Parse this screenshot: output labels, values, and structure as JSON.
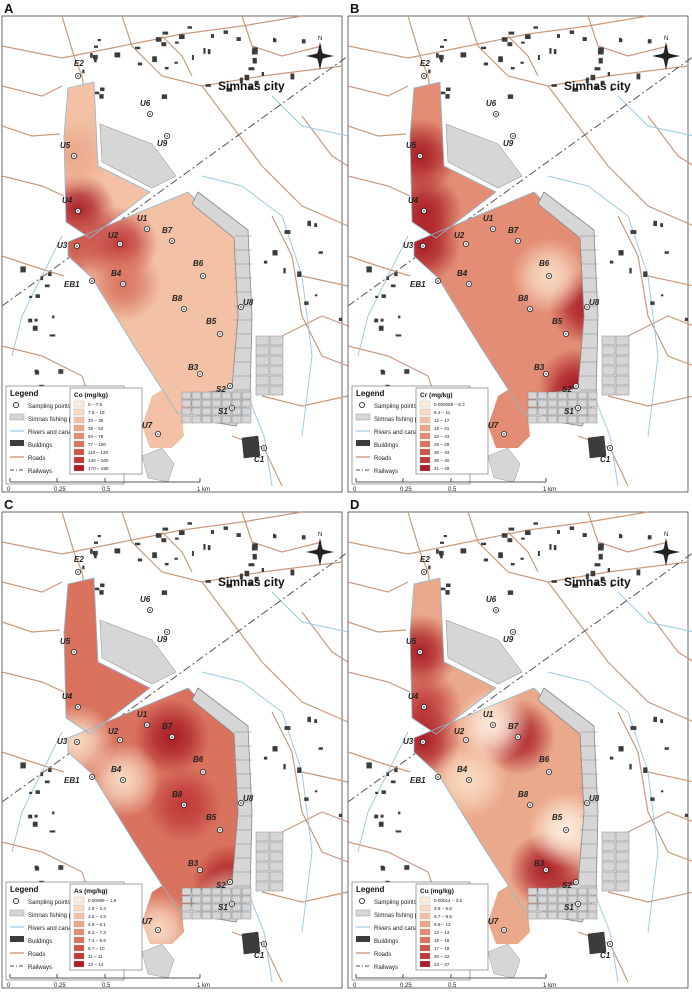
{
  "city_label": "Simnas city",
  "north": "N",
  "scale_labels": [
    "0",
    "0.25",
    "0.5",
    "1 km"
  ],
  "point_labels": {
    "E2": "E2",
    "U6": "U6",
    "U9": "U9",
    "U5": "U5",
    "U4": "U4",
    "U3": "U3",
    "U2": "U2",
    "U1": "U1",
    "B7": "B7",
    "B6": "B6",
    "EB1": "EB1",
    "B4": "B4",
    "B8": "B8",
    "U8": "U8",
    "B5": "B5",
    "B3": "B3",
    "S2": "S2",
    "S1": "S1",
    "U7": "U7",
    "C1": "C1"
  },
  "legend": {
    "title": "Legend",
    "items": [
      "Sampling points",
      "Simnas fishing ponds",
      "Rivers and canals",
      "Buildings",
      "Roads",
      "Railways"
    ]
  },
  "panels": [
    {
      "letter": "A",
      "scale_title": "Co (mg/kg)",
      "classes": [
        "0 – 7.5",
        "7.6 – 19",
        "20 – 35",
        "36 – 53",
        "54 – 76",
        "77 – 100",
        "110 – 130",
        "140 – 160",
        "170 – 190"
      ]
    },
    {
      "letter": "B",
      "scale_title": "Cr (mg/kg)",
      "classes": [
        "0.000058 – 5.3",
        "5.4 – 11",
        "12 – 17",
        "18 – 21",
        "22 – 24",
        "25 – 29",
        "30 – 34",
        "35 – 40",
        "41 – 49"
      ]
    },
    {
      "letter": "C",
      "scale_title": "As (mg/kg)",
      "classes": [
        "0.00069 – 1.8",
        "1.9 – 3.4",
        "3.5 – 4.8",
        "4.9 – 6.1",
        "6.2 – 7.3",
        "7.4 – 8.6",
        "8.7 – 10",
        "11 – 11",
        "12 – 14"
      ]
    },
    {
      "letter": "D",
      "scale_title": "Cu (mg/kg)",
      "classes": [
        "0.00014 – 3.5",
        "3.6 – 6.6",
        "6.7 – 9.5",
        "9.6 – 12",
        "13 – 14",
        "15 – 16",
        "17 – 19",
        "20 – 22",
        "23 – 27"
      ]
    }
  ],
  "colors": {
    "ramp": [
      "#fdeedd",
      "#f9dcc4",
      "#f3c2a6",
      "#eba98b",
      "#e38e74",
      "#d9735e",
      "#cd564a",
      "#bf3838",
      "#aa1d25"
    ],
    "pond": "#d6d6d6",
    "river": "#9ccbe3",
    "road": "#c99b7c",
    "building": "#3c3c3c"
  },
  "chart_data": [
    {
      "type": "map",
      "panel": "A",
      "variable": "Co (mg/kg)",
      "hotspot_levels": {
        "U4": 8,
        "U3": 6,
        "U2": 7,
        "U6": 3,
        "U9": 1,
        "U5": 3,
        "B4": 5
      }
    },
    {
      "type": "map",
      "panel": "B",
      "variable": "Cr (mg/kg)",
      "hotspot_levels": {
        "U5": 8,
        "U4": 8,
        "U3": 8,
        "U8": 8,
        "S2": 8,
        "S1": 8,
        "U6": 1,
        "U9": 1,
        "B6": 1
      }
    },
    {
      "type": "map",
      "panel": "C",
      "variable": "As (mg/kg)",
      "hotspot_levels": {
        "B7": 8,
        "B8": 7,
        "S2": 8,
        "U3": 1,
        "B4": 1,
        "U7": 1,
        "S1": 1
      }
    },
    {
      "type": "map",
      "panel": "D",
      "variable": "Cu (mg/kg)",
      "hotspot_levels": {
        "U5": 8,
        "U4": 7,
        "U3": 8,
        "B7": 8,
        "B3": 8,
        "S1": 8,
        "U1": 0,
        "U6": 1,
        "B5": 0,
        "B4": 1
      }
    }
  ]
}
